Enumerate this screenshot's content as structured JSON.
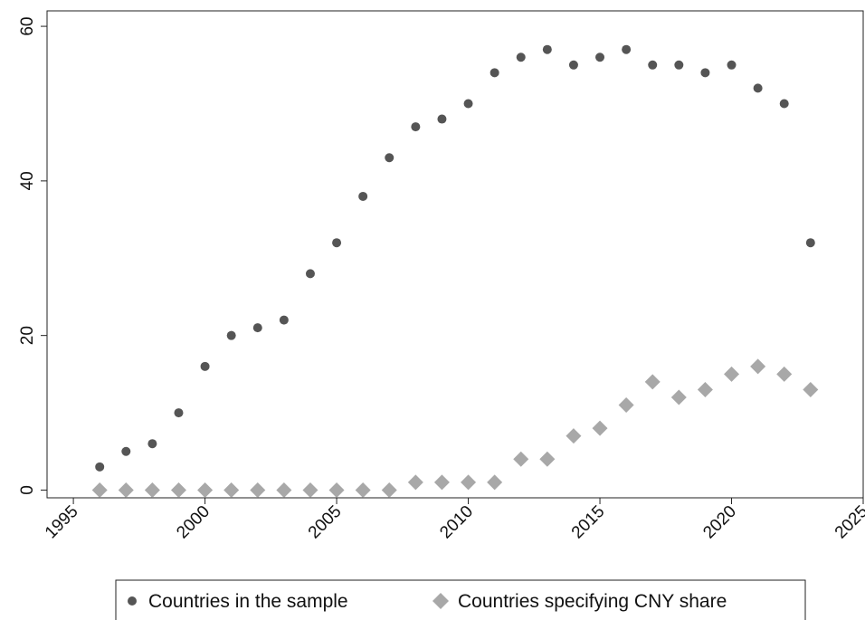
{
  "chart_data": {
    "type": "scatter",
    "title": "",
    "xlabel": "",
    "ylabel": "",
    "xlim": [
      1994,
      2025
    ],
    "ylim": [
      -1,
      62
    ],
    "xticks": [
      1995,
      2000,
      2005,
      2010,
      2015,
      2020,
      2025
    ],
    "yticks": [
      0,
      20,
      40,
      60
    ],
    "xtick_labels": [
      "1995",
      "2000",
      "2005",
      "2010",
      "2015",
      "2020",
      "2025"
    ],
    "ytick_labels": [
      "0",
      "20",
      "40",
      "60"
    ],
    "grid": false,
    "legend_position": "bottom",
    "series": [
      {
        "name": "Countries in the sample",
        "marker": "circle",
        "color": "#555555",
        "x": [
          1996,
          1997,
          1998,
          1999,
          2000,
          2001,
          2002,
          2003,
          2004,
          2005,
          2006,
          2007,
          2008,
          2009,
          2010,
          2011,
          2012,
          2013,
          2014,
          2015,
          2016,
          2017,
          2018,
          2019,
          2020,
          2021,
          2022,
          2023
        ],
        "y": [
          3,
          5,
          6,
          10,
          16,
          20,
          21,
          22,
          28,
          32,
          38,
          43,
          47,
          48,
          50,
          54,
          56,
          57,
          55,
          56,
          57,
          55,
          55,
          54,
          55,
          52,
          50,
          32
        ]
      },
      {
        "name": "Countries specifying CNY share",
        "marker": "diamond",
        "color": "#a8a8a8",
        "x": [
          1996,
          1997,
          1998,
          1999,
          2000,
          2001,
          2002,
          2003,
          2004,
          2005,
          2006,
          2007,
          2008,
          2009,
          2010,
          2011,
          2012,
          2013,
          2014,
          2015,
          2016,
          2017,
          2018,
          2019,
          2020,
          2021,
          2022,
          2023
        ],
        "y": [
          0,
          0,
          0,
          0,
          0,
          0,
          0,
          0,
          0,
          0,
          0,
          0,
          1,
          1,
          1,
          1,
          4,
          4,
          7,
          8,
          11,
          14,
          12,
          13,
          15,
          16,
          15,
          13
        ]
      }
    ]
  }
}
